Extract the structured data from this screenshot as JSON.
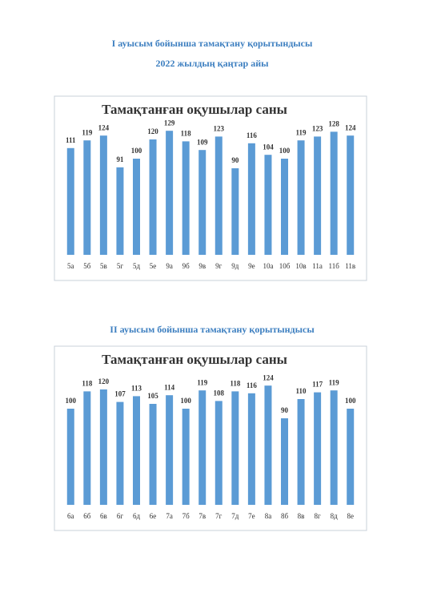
{
  "header": {
    "title1": "I ауысым бойынша тамақтану қорытындысы",
    "date": "2022 жылдың қаңтар айы",
    "title2": "II ауысым бойынша тамақтану қорытындысы"
  },
  "chart_data": [
    {
      "type": "bar",
      "title": "Тамақтанған оқушылар саны",
      "categories": [
        "5а",
        "5б",
        "5в",
        "5г",
        "5д",
        "5е",
        "9а",
        "9б",
        "9в",
        "9г",
        "9д",
        "9е",
        "10а",
        "10б",
        "10в",
        "11а",
        "11б",
        "11в"
      ],
      "values": [
        111,
        119,
        124,
        91,
        100,
        120,
        129,
        118,
        109,
        123,
        90,
        116,
        104,
        100,
        119,
        123,
        128,
        124
      ],
      "color": "#5b9bd5",
      "ylim": [
        0,
        140
      ],
      "grid": false
    },
    {
      "type": "bar",
      "title": "Тамақтанған оқушылар саны",
      "categories": [
        "6а",
        "6б",
        "6в",
        "6г",
        "6д",
        "6е",
        "7а",
        "7б",
        "7в",
        "7г",
        "7д",
        "7е",
        "8а",
        "8б",
        "8в",
        "8г",
        "8д",
        "8е"
      ],
      "values": [
        100,
        118,
        120,
        107,
        113,
        105,
        114,
        100,
        119,
        108,
        118,
        116,
        124,
        90,
        110,
        117,
        119,
        100
      ],
      "color": "#5b9bd5",
      "ylim": [
        0,
        140
      ],
      "grid": false
    }
  ]
}
